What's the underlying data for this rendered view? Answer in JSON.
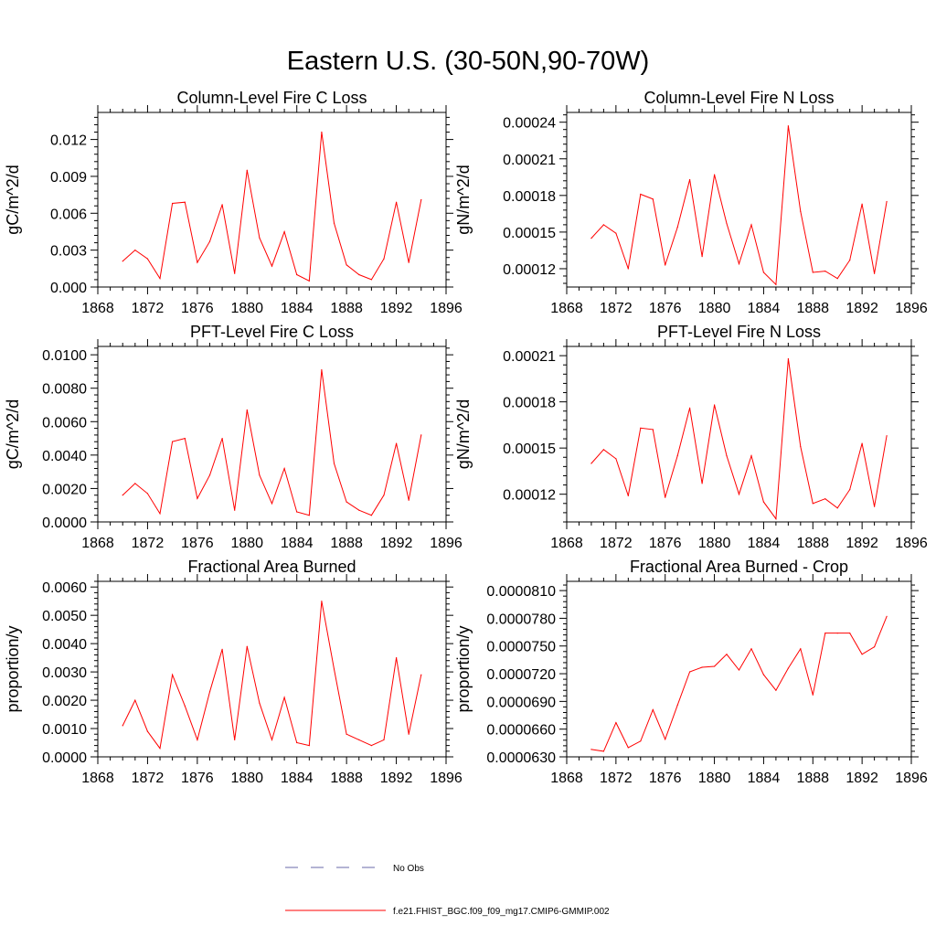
{
  "title": "Eastern U.S. (30-50N,90-70W)",
  "colors": {
    "model": "#ff0000",
    "obs": "#6a6aa8",
    "axis": "#000000"
  },
  "legend": {
    "obs_label": "No Obs",
    "model_label": "f.e21.FHIST_BGC.f09_f09_mg17.CMIP6-GMMIP.002"
  },
  "chart_data": [
    {
      "type": "line",
      "title": "Column-Level Fire C Loss",
      "ylabel": "gC/m^2/d",
      "xlim": [
        1868,
        1896
      ],
      "ylim": [
        0,
        0.0142
      ],
      "xticks": [
        1868,
        1872,
        1876,
        1880,
        1884,
        1888,
        1892,
        1896
      ],
      "yticks": [
        0,
        0.003,
        0.006,
        0.009,
        0.012
      ],
      "yticklabels": [
        "0.000",
        "0.003",
        "0.006",
        "0.009",
        "0.012"
      ],
      "x": [
        1870,
        1871,
        1872,
        1873,
        1874,
        1875,
        1876,
        1877,
        1878,
        1879,
        1880,
        1881,
        1882,
        1883,
        1884,
        1885,
        1886,
        1887,
        1888,
        1889,
        1890,
        1891,
        1892,
        1893,
        1894
      ],
      "series": [
        {
          "name": "f.e21.FHIST_BGC.f09_f09_mg17.CMIP6-GMMIP.002",
          "values": [
            0.0021,
            0.003,
            0.0023,
            0.0007,
            0.0068,
            0.0069,
            0.002,
            0.0037,
            0.0067,
            0.0011,
            0.0095,
            0.004,
            0.0017,
            0.0045,
            0.001,
            0.0005,
            0.0126,
            0.0052,
            0.0018,
            0.001,
            0.0006,
            0.0023,
            0.0069,
            0.002,
            0.0071
          ]
        }
      ]
    },
    {
      "type": "line",
      "title": "Column-Level Fire N Loss",
      "ylabel": "gN/m^2/d",
      "xlim": [
        1868,
        1896
      ],
      "ylim": [
        0.000105,
        0.000248
      ],
      "xticks": [
        1868,
        1872,
        1876,
        1880,
        1884,
        1888,
        1892,
        1896
      ],
      "yticks": [
        0.00012,
        0.00015,
        0.00018,
        0.00021,
        0.00024
      ],
      "yticklabels": [
        "0.00012",
        "0.00015",
        "0.00018",
        "0.00021",
        "0.00024"
      ],
      "x": [
        1870,
        1871,
        1872,
        1873,
        1874,
        1875,
        1876,
        1877,
        1878,
        1879,
        1880,
        1881,
        1882,
        1883,
        1884,
        1885,
        1886,
        1887,
        1888,
        1889,
        1890,
        1891,
        1892,
        1893,
        1894
      ],
      "series": [
        {
          "name": "f.e21.FHIST_BGC.f09_f09_mg17.CMIP6-GMMIP.002",
          "values": [
            0.000145,
            0.000156,
            0.000149,
            0.00012,
            0.000181,
            0.000177,
            0.000123,
            0.000154,
            0.000193,
            0.00013,
            0.000197,
            0.000157,
            0.000124,
            0.000156,
            0.000117,
            0.000107,
            0.000237,
            0.000167,
            0.000117,
            0.000118,
            0.000112,
            0.000127,
            0.000173,
            0.000116,
            0.000175
          ]
        }
      ]
    },
    {
      "type": "line",
      "title": "PFT-Level Fire C Loss",
      "ylabel": "gC/m^2/d",
      "xlim": [
        1868,
        1896
      ],
      "ylim": [
        0,
        0.0105
      ],
      "xticks": [
        1868,
        1872,
        1876,
        1880,
        1884,
        1888,
        1892,
        1896
      ],
      "yticks": [
        0,
        0.002,
        0.004,
        0.006,
        0.008,
        0.01
      ],
      "yticklabels": [
        "0.0000",
        "0.0020",
        "0.0040",
        "0.0060",
        "0.0080",
        "0.0100"
      ],
      "x": [
        1870,
        1871,
        1872,
        1873,
        1874,
        1875,
        1876,
        1877,
        1878,
        1879,
        1880,
        1881,
        1882,
        1883,
        1884,
        1885,
        1886,
        1887,
        1888,
        1889,
        1890,
        1891,
        1892,
        1893,
        1894
      ],
      "series": [
        {
          "name": "f.e21.FHIST_BGC.f09_f09_mg17.CMIP6-GMMIP.002",
          "values": [
            0.0016,
            0.0023,
            0.0017,
            0.0005,
            0.0048,
            0.005,
            0.0014,
            0.0028,
            0.005,
            0.0007,
            0.0067,
            0.0028,
            0.0011,
            0.0032,
            0.0006,
            0.0004,
            0.0091,
            0.0035,
            0.0012,
            0.0007,
            0.0004,
            0.0016,
            0.0047,
            0.0013,
            0.0052
          ]
        }
      ]
    },
    {
      "type": "line",
      "title": "PFT-Level Fire N Loss",
      "ylabel": "gN/m^2/d",
      "xlim": [
        1868,
        1896
      ],
      "ylim": [
        0.000102,
        0.000216
      ],
      "xticks": [
        1868,
        1872,
        1876,
        1880,
        1884,
        1888,
        1892,
        1896
      ],
      "yticks": [
        0.00012,
        0.00015,
        0.00018,
        0.00021
      ],
      "yticklabels": [
        "0.00012",
        "0.00015",
        "0.00018",
        "0.00021"
      ],
      "x": [
        1870,
        1871,
        1872,
        1873,
        1874,
        1875,
        1876,
        1877,
        1878,
        1879,
        1880,
        1881,
        1882,
        1883,
        1884,
        1885,
        1886,
        1887,
        1888,
        1889,
        1890,
        1891,
        1892,
        1893,
        1894
      ],
      "series": [
        {
          "name": "f.e21.FHIST_BGC.f09_f09_mg17.CMIP6-GMMIP.002",
          "values": [
            0.00014,
            0.000149,
            0.000143,
            0.000119,
            0.000163,
            0.000162,
            0.000118,
            0.000145,
            0.000176,
            0.000127,
            0.000178,
            0.000145,
            0.00012,
            0.000145,
            0.000115,
            0.000104,
            0.000208,
            0.000151,
            0.000114,
            0.000117,
            0.000111,
            0.000123,
            0.000153,
            0.000112,
            0.000158
          ]
        }
      ]
    },
    {
      "type": "line",
      "title": "Fractional Area Burned",
      "ylabel": "proportion/y",
      "xlim": [
        1868,
        1896
      ],
      "ylim": [
        0,
        0.0062
      ],
      "xticks": [
        1868,
        1872,
        1876,
        1880,
        1884,
        1888,
        1892,
        1896
      ],
      "yticks": [
        0,
        0.001,
        0.002,
        0.003,
        0.004,
        0.005,
        0.006
      ],
      "yticklabels": [
        "0.0000",
        "0.0010",
        "0.0020",
        "0.0030",
        "0.0040",
        "0.0050",
        "0.0060"
      ],
      "x": [
        1870,
        1871,
        1872,
        1873,
        1874,
        1875,
        1876,
        1877,
        1878,
        1879,
        1880,
        1881,
        1882,
        1883,
        1884,
        1885,
        1886,
        1887,
        1888,
        1889,
        1890,
        1891,
        1892,
        1893,
        1894
      ],
      "series": [
        {
          "name": "f.e21.FHIST_BGC.f09_f09_mg17.CMIP6-GMMIP.002",
          "values": [
            0.0011,
            0.002,
            0.0009,
            0.0003,
            0.0029,
            0.0018,
            0.0006,
            0.0023,
            0.0038,
            0.0006,
            0.0039,
            0.0019,
            0.0006,
            0.0021,
            0.0005,
            0.0004,
            0.0055,
            0.0031,
            0.0008,
            0.0006,
            0.0004,
            0.0006,
            0.0035,
            0.0008,
            0.0029
          ]
        }
      ]
    },
    {
      "type": "line",
      "title": "Fractional Area Burned - Crop",
      "ylabel": "proportion/y",
      "xlim": [
        1868,
        1896
      ],
      "ylim": [
        6.3e-05,
        8.2e-05
      ],
      "xticks": [
        1868,
        1872,
        1876,
        1880,
        1884,
        1888,
        1892,
        1896
      ],
      "yticks": [
        6.3e-05,
        6.6e-05,
        6.9e-05,
        7.2e-05,
        7.5e-05,
        7.8e-05,
        8.1e-05
      ],
      "yticklabels": [
        "0.0000630",
        "0.0000660",
        "0.0000690",
        "0.0000720",
        "0.0000750",
        "0.0000780",
        "0.0000810"
      ],
      "x": [
        1870,
        1871,
        1872,
        1873,
        1874,
        1875,
        1876,
        1877,
        1878,
        1879,
        1880,
        1881,
        1882,
        1883,
        1884,
        1885,
        1886,
        1887,
        1888,
        1889,
        1890,
        1891,
        1892,
        1893,
        1894
      ],
      "series": [
        {
          "name": "f.e21.FHIST_BGC.f09_f09_mg17.CMIP6-GMMIP.002",
          "values": [
            6.38e-05,
            6.36e-05,
            6.67e-05,
            6.4e-05,
            6.47e-05,
            6.81e-05,
            6.49e-05,
            6.86e-05,
            7.22e-05,
            7.27e-05,
            7.28e-05,
            7.41e-05,
            7.24e-05,
            7.47e-05,
            7.19e-05,
            7.02e-05,
            7.26e-05,
            7.47e-05,
            6.97e-05,
            7.64e-05,
            7.64e-05,
            7.64e-05,
            7.41e-05,
            7.49e-05,
            7.82e-05
          ]
        }
      ]
    }
  ]
}
